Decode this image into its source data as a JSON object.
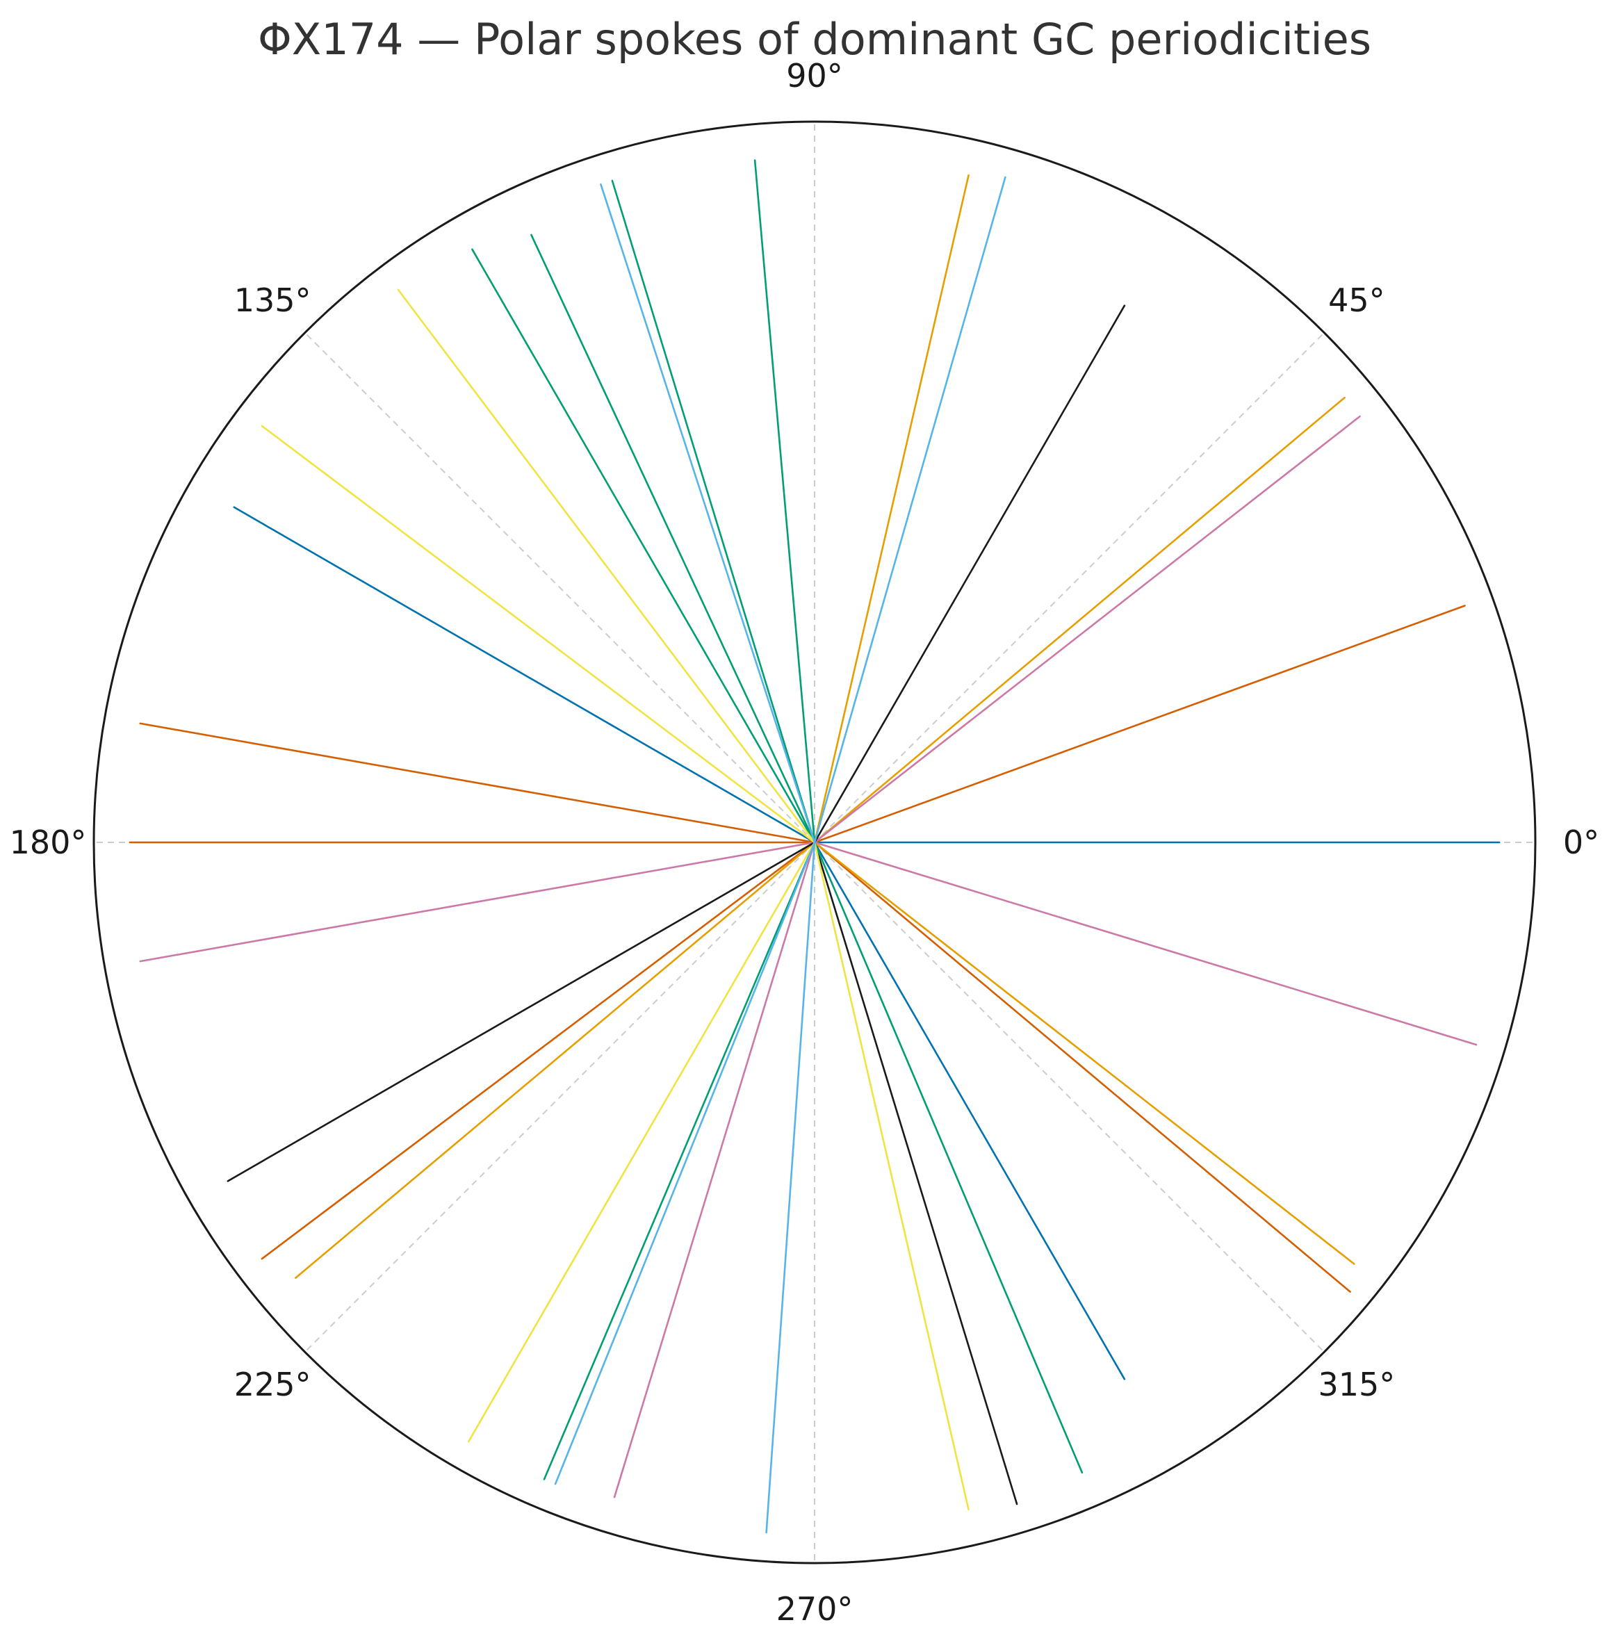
{
  "chart_data": {
    "type": "polar",
    "title": "ΦX174 — Polar spokes of dominant GC periodicities",
    "angle_unit": "degrees",
    "r_range": [
      0,
      1
    ],
    "grid": {
      "angles": [
        0,
        45,
        90,
        135,
        180,
        225,
        270,
        315
      ],
      "style": "dashed",
      "color": "#cccccc"
    },
    "tick_labels": [
      "0°",
      "45°",
      "90°",
      "135°",
      "180°",
      "225°",
      "270°",
      "315°"
    ],
    "series": [
      {
        "values": [
          {
            "angle": 0.0,
            "r": 0.95
          },
          {
            "angle": 300.0,
            "r": 0.86
          },
          {
            "angle": 150.0,
            "r": 0.93
          }
        ],
        "color": "#0072B2"
      },
      {
        "values": [
          {
            "angle": 20.0,
            "r": 0.96
          },
          {
            "angle": 180.0,
            "r": 0.95
          },
          {
            "angle": 320.0,
            "r": 0.97
          },
          {
            "angle": 217.0,
            "r": 0.96
          },
          {
            "angle": 170.0,
            "r": 0.95
          }
        ],
        "color": "#D55E00"
      },
      {
        "values": [
          {
            "angle": 40.0,
            "r": 0.96
          },
          {
            "angle": 220.0,
            "r": 0.94
          },
          {
            "angle": 322.0,
            "r": 0.95
          },
          {
            "angle": 77.0,
            "r": 0.95
          }
        ],
        "color": "#E69F00"
      },
      {
        "values": [
          {
            "angle": 38.0,
            "r": 0.96
          },
          {
            "angle": 190.0,
            "r": 0.95
          },
          {
            "angle": 343.0,
            "r": 0.96
          },
          {
            "angle": 253.0,
            "r": 0.95
          }
        ],
        "color": "#CC79A7"
      },
      {
        "values": [
          {
            "angle": 60.0,
            "r": 0.86
          },
          {
            "angle": 210.0,
            "r": 0.94
          },
          {
            "angle": 287.0,
            "r": 0.96
          }
        ],
        "color": "#1a1a1a"
      },
      {
        "values": [
          {
            "angle": 95.0,
            "r": 0.95
          },
          {
            "angle": 293.0,
            "r": 0.95
          },
          {
            "angle": 247.0,
            "r": 0.96
          }
        ],
        "color": "#009E73"
      },
      {
        "values": [
          {
            "angle": 107.0,
            "r": 0.96
          },
          {
            "angle": 115.0,
            "r": 0.93
          },
          {
            "angle": 120.0,
            "r": 0.95
          }
        ],
        "color": "#009E73"
      },
      {
        "values": [
          {
            "angle": 127.0,
            "r": 0.96
          },
          {
            "angle": 143.0,
            "r": 0.96
          },
          {
            "angle": 240.0,
            "r": 0.96
          },
          {
            "angle": 283.0,
            "r": 0.95
          }
        ],
        "color": "#F0E442"
      },
      {
        "values": [
          {
            "angle": 74.0,
            "r": 0.96
          },
          {
            "angle": 108.0,
            "r": 0.96
          },
          {
            "angle": 248.0,
            "r": 0.96
          },
          {
            "angle": 266.0,
            "r": 0.96
          }
        ],
        "color": "#56B4E9"
      }
    ]
  }
}
